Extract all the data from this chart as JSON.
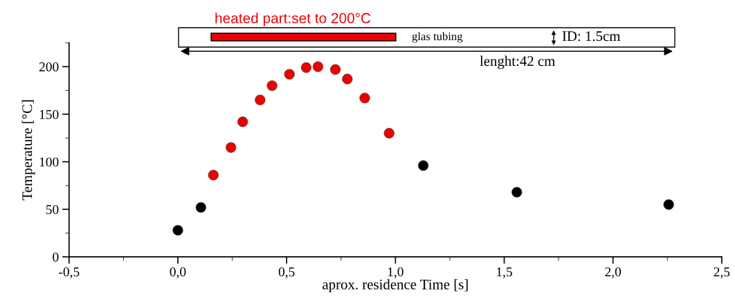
{
  "chart_data": {
    "type": "scatter",
    "xlabel": "aprox. residence Time [s]",
    "ylabel": "Temperature [°C]",
    "xlim": [
      -0.5,
      2.5
    ],
    "ylim": [
      0,
      225
    ],
    "xticks": [
      {
        "value": -0.5,
        "label": "-0,5"
      },
      {
        "value": 0,
        "label": "0,0"
      },
      {
        "value": 0.5,
        "label": "0,5"
      },
      {
        "value": 1,
        "label": "1,0"
      },
      {
        "value": 1.5,
        "label": "1,5"
      },
      {
        "value": 2,
        "label": "2,0"
      },
      {
        "value": 2.5,
        "label": "2,5"
      }
    ],
    "yticks": [
      0,
      50,
      100,
      150,
      200
    ],
    "marker": "circle",
    "grid": false,
    "series": [
      {
        "color": "#000000",
        "x": [
          0,
          0.106,
          1.128,
          1.558,
          2.256
        ],
        "values": [
          28,
          52,
          96,
          68,
          55
        ]
      },
      {
        "color": "#ee0000",
        "x": [
          0.163,
          0.244,
          0.298,
          0.378,
          0.433,
          0.513,
          0.59,
          0.644,
          0.724,
          0.779,
          0.859,
          0.971
        ],
        "values": [
          86,
          115,
          142,
          165,
          180,
          192,
          199,
          200,
          197,
          187,
          167,
          130
        ]
      }
    ],
    "annotations": [
      "heated part:set to 200°C",
      "glas tubing",
      "ID: 1.5cm",
      "lenght:42 cm"
    ]
  }
}
